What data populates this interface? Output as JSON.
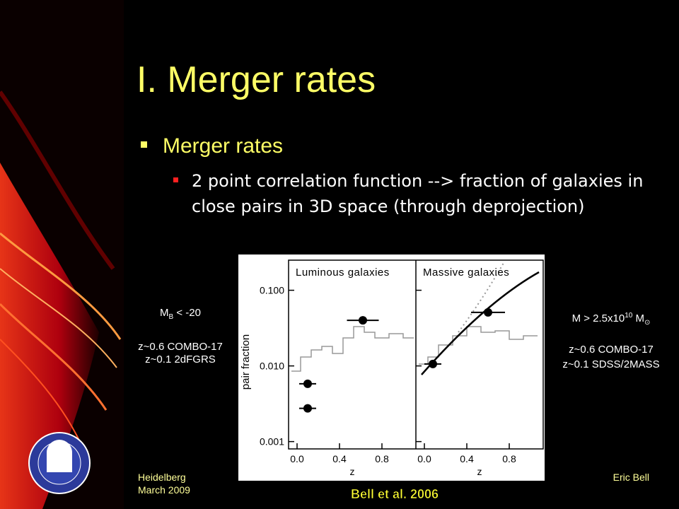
{
  "slide": {
    "title": "I. Merger rates",
    "bullet": "Merger rates",
    "sub_bullet": "2 point correlation function --> fraction of galaxies in close pairs in 3D space (through deprojection)",
    "left_note": {
      "symbol": "M",
      "subscript": "B",
      "rest": " < -20",
      "lines": [
        "z~0.6 COMBO-17",
        "z~0.1 2dFGRS"
      ]
    },
    "right_note": {
      "text": "M > 2.5x10",
      "exponent": "10",
      "unit": " M",
      "unit_subscript": "⊙",
      "lines": [
        "z~0.6 COMBO-17",
        "z~0.1 SDSS/2MASS"
      ]
    },
    "footer_left": [
      "Heidelberg",
      "March 2009"
    ],
    "footer_right": "Eric Bell",
    "caption": "Bell et al. 2006"
  },
  "figure": {
    "type": "scatter",
    "ylabel": "pair fraction",
    "xlabel": "z",
    "log_y": true,
    "ylim": [
      0.0008,
      0.25
    ],
    "yticks": [
      {
        "value": 0.1,
        "label": "0.100"
      },
      {
        "value": 0.01,
        "label": "0.010"
      },
      {
        "value": 0.001,
        "label": "0.001"
      }
    ],
    "xlim": [
      -0.08,
      1.12
    ],
    "xticks": [
      {
        "value": 0,
        "label": "0.0"
      },
      0.4,
      0.8
    ],
    "panels": [
      {
        "title": "Luminous galaxies",
        "x": [
          0.1,
          0.1,
          0.62
        ],
        "values": [
          0.0058,
          0.00275,
          0.04
        ],
        "xerr": [
          0.08,
          0.08,
          0.15
        ]
      },
      {
        "title": "Massive galaxies",
        "x": [
          0.08,
          0.6
        ],
        "values": [
          0.0106,
          0.051
        ],
        "xerr": [
          0.08,
          0.16
        ]
      }
    ]
  }
}
